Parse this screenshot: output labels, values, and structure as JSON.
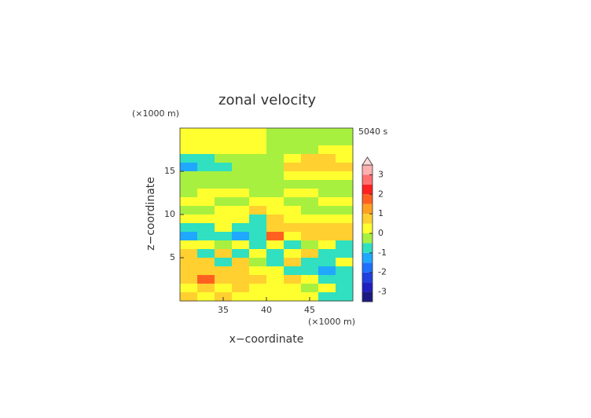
{
  "chart_data": {
    "type": "heatmap",
    "title": "zonal velocity",
    "x_label": "x−coordinate",
    "y_label": "z−coordinate",
    "x_unit": "(×1000 m)",
    "y_unit": "(×1000 m)",
    "time_label": "5040 s",
    "xlim": [
      30,
      50
    ],
    "ylim": [
      0,
      20
    ],
    "xticks": [
      35,
      40,
      45
    ],
    "yticks": [
      5,
      10,
      15
    ],
    "x": [
      31,
      33,
      35,
      37,
      39,
      41,
      43,
      45,
      47,
      49
    ],
    "z": [
      19.5,
      18.5,
      17.5,
      16.5,
      15.5,
      14.5,
      13.5,
      12.5,
      11.5,
      10.5,
      9.5,
      8.5,
      7.5,
      6.5,
      5.5,
      4.5,
      3.5,
      2.5,
      1.5,
      0.5
    ],
    "values": [
      [
        0.2,
        0.2,
        0.2,
        0.2,
        0.2,
        -0.2,
        -0.2,
        -0.2,
        -0.2,
        -0.2
      ],
      [
        0.2,
        0.2,
        0.2,
        0.2,
        0.2,
        -0.2,
        -0.2,
        -0.2,
        -0.2,
        -0.2
      ],
      [
        0.2,
        0.2,
        0.2,
        0.2,
        0.2,
        -0.2,
        -0.2,
        -0.2,
        0.2,
        0.2
      ],
      [
        -0.7,
        -0.6,
        -0.2,
        -0.2,
        -0.2,
        -0.2,
        0.3,
        0.7,
        0.6,
        0.3
      ],
      [
        -1.3,
        -0.7,
        -0.6,
        -0.2,
        -0.2,
        -0.2,
        0.6,
        0.8,
        0.8,
        0.6
      ],
      [
        -0.2,
        -0.2,
        -0.2,
        -0.2,
        -0.2,
        -0.2,
        0.2,
        0.3,
        0.3,
        0.2
      ],
      [
        -0.2,
        -0.2,
        -0.2,
        -0.2,
        -0.2,
        -0.2,
        -0.2,
        -0.2,
        -0.2,
        -0.2
      ],
      [
        -0.2,
        0.2,
        0.2,
        0.2,
        -0.2,
        -0.2,
        0.2,
        0.2,
        -0.2,
        -0.2
      ],
      [
        0.2,
        0.2,
        -0.2,
        -0.2,
        0.2,
        0.2,
        -0.2,
        -0.2,
        0.2,
        0.2
      ],
      [
        -0.2,
        -0.2,
        0.2,
        0.2,
        0.6,
        0.2,
        0.2,
        -0.2,
        -0.2,
        -0.2
      ],
      [
        0.2,
        0.2,
        0.2,
        0.2,
        -0.6,
        0.6,
        0.2,
        0.2,
        0.2,
        0.2
      ],
      [
        -0.7,
        -0.6,
        0.2,
        -0.7,
        -0.7,
        0.8,
        0.6,
        0.6,
        0.6,
        0.6
      ],
      [
        -1.3,
        -0.7,
        -0.6,
        -1.3,
        -0.7,
        1.8,
        0.2,
        0.6,
        0.8,
        0.8
      ],
      [
        0.2,
        0.2,
        -0.2,
        0.2,
        -0.6,
        0.2,
        -0.6,
        -0.2,
        0.2,
        -0.6
      ],
      [
        0.6,
        -0.7,
        0.6,
        -0.7,
        0.2,
        -0.7,
        0.2,
        0.6,
        -0.6,
        -0.7
      ],
      [
        0.8,
        0.6,
        -0.6,
        0.6,
        -0.2,
        -0.6,
        0.6,
        -0.7,
        -0.7,
        0.2
      ],
      [
        0.6,
        0.8,
        0.6,
        0.6,
        0.2,
        0.2,
        -0.6,
        -0.7,
        -1.3,
        -0.7
      ],
      [
        0.6,
        1.6,
        0.8,
        0.6,
        0.6,
        0.2,
        0.6,
        0.2,
        -0.6,
        -0.6
      ],
      [
        0.2,
        0.6,
        0.2,
        0.6,
        0.2,
        0.2,
        0.2,
        -0.2,
        0.2,
        -0.6
      ],
      [
        0.6,
        0.2,
        0.6,
        0.2,
        0.2,
        0.2,
        0.2,
        0.2,
        -0.6,
        -0.6
      ]
    ],
    "levels": [
      -3.5,
      -3,
      -2.5,
      -2,
      -1.5,
      -1,
      -0.5,
      0,
      0.5,
      1,
      1.5,
      2,
      2.5,
      3,
      3.5
    ],
    "colors": [
      "#1a1a80",
      "#2020c0",
      "#2040e0",
      "#2070ff",
      "#20a8ff",
      "#30e0c0",
      "#a8f040",
      "#ffff30",
      "#ffd030",
      "#ffa020",
      "#ff6020",
      "#ff2020",
      "#ff7070",
      "#ffb0b0"
    ],
    "cbar_ticks": [
      -3,
      -2,
      -1,
      0,
      1,
      2,
      3
    ]
  }
}
